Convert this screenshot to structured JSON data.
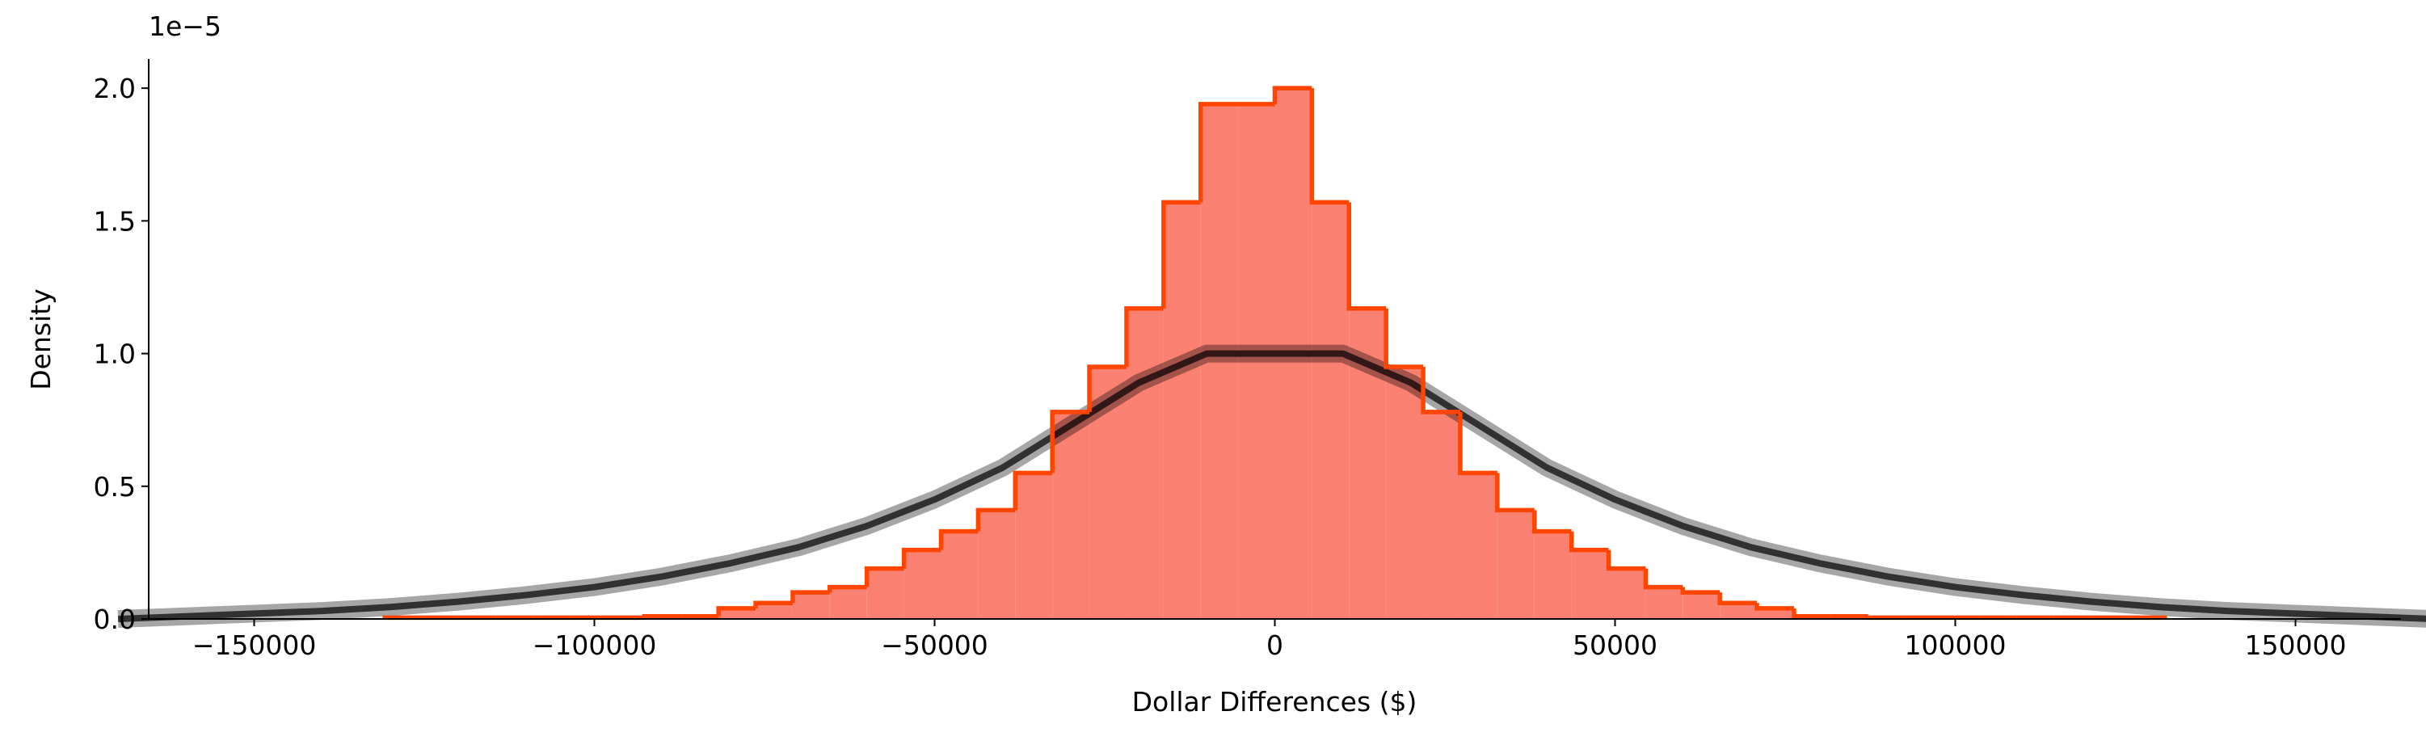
{
  "chart_data": {
    "type": "histogram",
    "xlabel": "Dollar Differences ($)",
    "ylabel": "Density",
    "y_offset_label": "1e−5",
    "bins": [
      -130800,
      -125350,
      -119900,
      -114450,
      -109000,
      -103550,
      -98100,
      -92650,
      -87200,
      -81750,
      -76300,
      -70850,
      -65400,
      -59950,
      -54500,
      -49050,
      -43600,
      -38150,
      -32700,
      -27250,
      -21800,
      -16350,
      -10900,
      -5450,
      0,
      5450,
      10900,
      16350,
      21800,
      27250,
      32700,
      38150,
      43600,
      49050,
      54500,
      59950,
      65400,
      70850,
      76300,
      81750,
      87200,
      92650,
      98100,
      103550,
      109000,
      114450,
      119900,
      125350,
      130800
    ],
    "values": [
      0.005,
      0.005,
      0.005,
      0.005,
      0.005,
      0.005,
      0.005,
      0.01,
      0.01,
      0.04,
      0.06,
      0.1,
      0.12,
      0.19,
      0.26,
      0.33,
      0.41,
      0.55,
      0.78,
      0.95,
      1.17,
      1.57,
      1.94,
      1.94,
      2.0,
      1.57,
      1.17,
      0.95,
      0.78,
      0.55,
      0.41,
      0.33,
      0.26,
      0.19,
      0.12,
      0.1,
      0.06,
      0.04,
      0.01,
      0.01,
      0.005,
      0.005,
      0.005,
      0.005,
      0.005,
      0.005,
      0.005,
      0.005
    ],
    "color": "#fa8072",
    "edge_color": "#ff4500",
    "lines": [
      {
        "color": "#000000",
        "x": [
          -170000,
          -160000,
          -150000,
          -140000,
          -130000,
          -120000,
          -110000,
          -100000,
          -90000,
          -80000,
          -70000,
          -60000,
          -50000,
          -40000,
          -30000,
          -20000,
          -10000,
          0,
          10000,
          20000,
          30000,
          40000,
          50000,
          60000,
          70000,
          80000,
          90000,
          100000,
          110000,
          120000,
          130000,
          140000,
          150000,
          160000,
          170000
        ],
        "values": [
          0,
          0.01,
          0.02,
          0.03,
          0.045,
          0.065,
          0.09,
          0.12,
          0.16,
          0.21,
          0.27,
          0.35,
          0.45,
          0.57,
          0.73,
          0.89,
          1.0,
          1.0,
          1.0,
          0.89,
          0.73,
          0.57,
          0.45,
          0.35,
          0.27,
          0.21,
          0.16,
          0.12,
          0.09,
          0.065,
          0.045,
          0.03,
          0.02,
          0.01,
          0
        ]
      }
    ],
    "xlim": [
      -165500,
      165500
    ],
    "ylim": [
      0,
      2.11
    ],
    "xticks": [
      {
        "value": -150000,
        "label": "−150000"
      },
      {
        "value": -100000,
        "label": "−100000"
      },
      {
        "value": -50000,
        "label": "−50000"
      },
      0,
      50000,
      100000,
      150000
    ],
    "yticks": [
      {
        "value": 0,
        "label": "0.0"
      },
      0.5,
      {
        "value": 1,
        "label": "1.0"
      },
      1.5,
      {
        "value": 2,
        "label": "2.0"
      }
    ],
    "grid": false
  }
}
